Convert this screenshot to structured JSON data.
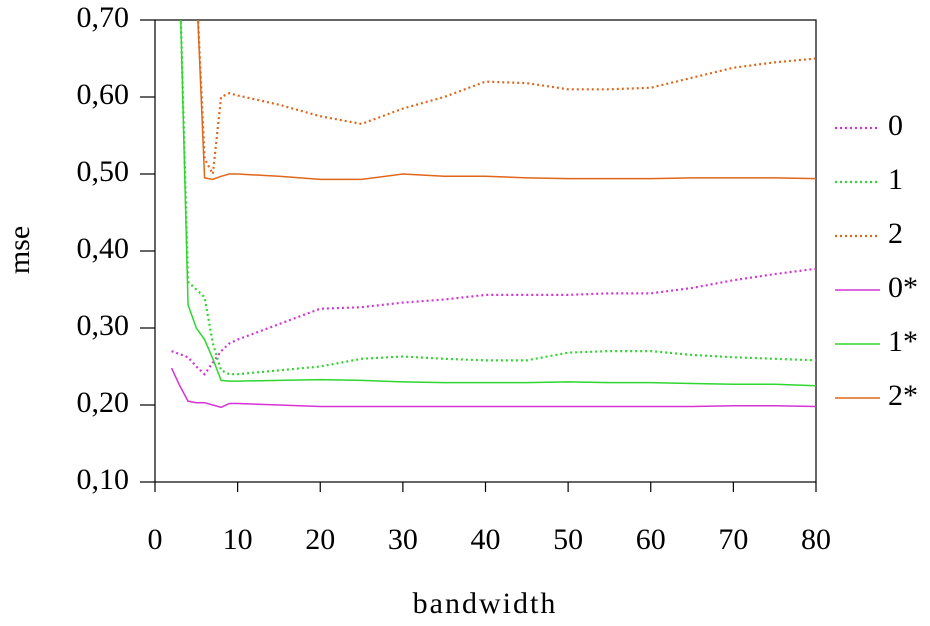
{
  "chart_data": {
    "type": "line",
    "x_label": "bandwidth",
    "y_label": "mse",
    "x": [
      2,
      3,
      4,
      5,
      6,
      7,
      8,
      9,
      10,
      15,
      20,
      25,
      30,
      35,
      40,
      45,
      50,
      55,
      60,
      65,
      70,
      75,
      80
    ],
    "xlim": [
      0,
      80
    ],
    "xticks": [
      0,
      10,
      20,
      30,
      40,
      50,
      60,
      70,
      80
    ],
    "ylim": [
      0.1,
      0.7
    ],
    "yticks": [
      {
        "value": 0.1,
        "label": "0,10"
      },
      {
        "value": 0.2,
        "label": "0,20"
      },
      {
        "value": 0.3,
        "label": "0,30"
      },
      {
        "value": 0.4,
        "label": "0,40"
      },
      {
        "value": 0.5,
        "label": "0,50"
      },
      {
        "value": 0.6,
        "label": "0,60"
      },
      {
        "value": 0.7,
        "label": "0,70"
      }
    ],
    "grid": false,
    "legend": "right",
    "series": [
      {
        "name": "0",
        "color": "#d633d6",
        "style": "dotted",
        "values": [
          0.27,
          0.266,
          0.262,
          0.25,
          0.24,
          0.255,
          0.27,
          0.28,
          0.285,
          0.305,
          0.325,
          0.327,
          0.333,
          0.337,
          0.343,
          0.343,
          0.343,
          0.345,
          0.345,
          0.352,
          0.362,
          0.37,
          0.377
        ]
      },
      {
        "name": "1",
        "color": "#2ed62e",
        "style": "dotted",
        "values": [
          null,
          0.75,
          0.36,
          0.35,
          0.34,
          0.28,
          0.245,
          0.24,
          0.24,
          0.245,
          0.25,
          0.26,
          0.263,
          0.26,
          0.258,
          0.258,
          0.268,
          0.27,
          0.27,
          0.265,
          0.262,
          0.26,
          0.258
        ]
      },
      {
        "name": "2",
        "color": "#e0661a",
        "style": "dotted",
        "values": [
          null,
          null,
          null,
          0.75,
          0.52,
          0.5,
          0.6,
          0.605,
          0.602,
          0.59,
          0.575,
          0.565,
          0.585,
          0.6,
          0.62,
          0.618,
          0.61,
          0.61,
          0.612,
          0.625,
          0.638,
          0.645,
          0.65
        ]
      },
      {
        "name": "0*",
        "color": "#d633d6",
        "style": "solid",
        "values": [
          0.248,
          0.225,
          0.205,
          0.203,
          0.203,
          0.2,
          0.197,
          0.202,
          0.202,
          0.2,
          0.198,
          0.198,
          0.198,
          0.198,
          0.198,
          0.198,
          0.198,
          0.198,
          0.198,
          0.198,
          0.199,
          0.199,
          0.198
        ]
      },
      {
        "name": "1*",
        "color": "#2ed62e",
        "style": "solid",
        "values": [
          null,
          0.75,
          0.33,
          0.3,
          0.285,
          0.26,
          0.232,
          0.231,
          0.231,
          0.232,
          0.233,
          0.232,
          0.23,
          0.229,
          0.229,
          0.229,
          0.23,
          0.229,
          0.229,
          0.228,
          0.227,
          0.227,
          0.225
        ]
      },
      {
        "name": "2*",
        "color": "#e0661a",
        "style": "solid",
        "values": [
          null,
          null,
          null,
          0.75,
          0.495,
          0.493,
          0.497,
          0.5,
          0.5,
          0.497,
          0.493,
          0.493,
          0.5,
          0.497,
          0.497,
          0.495,
          0.494,
          0.494,
          0.494,
          0.495,
          0.495,
          0.495,
          0.494
        ]
      }
    ]
  }
}
